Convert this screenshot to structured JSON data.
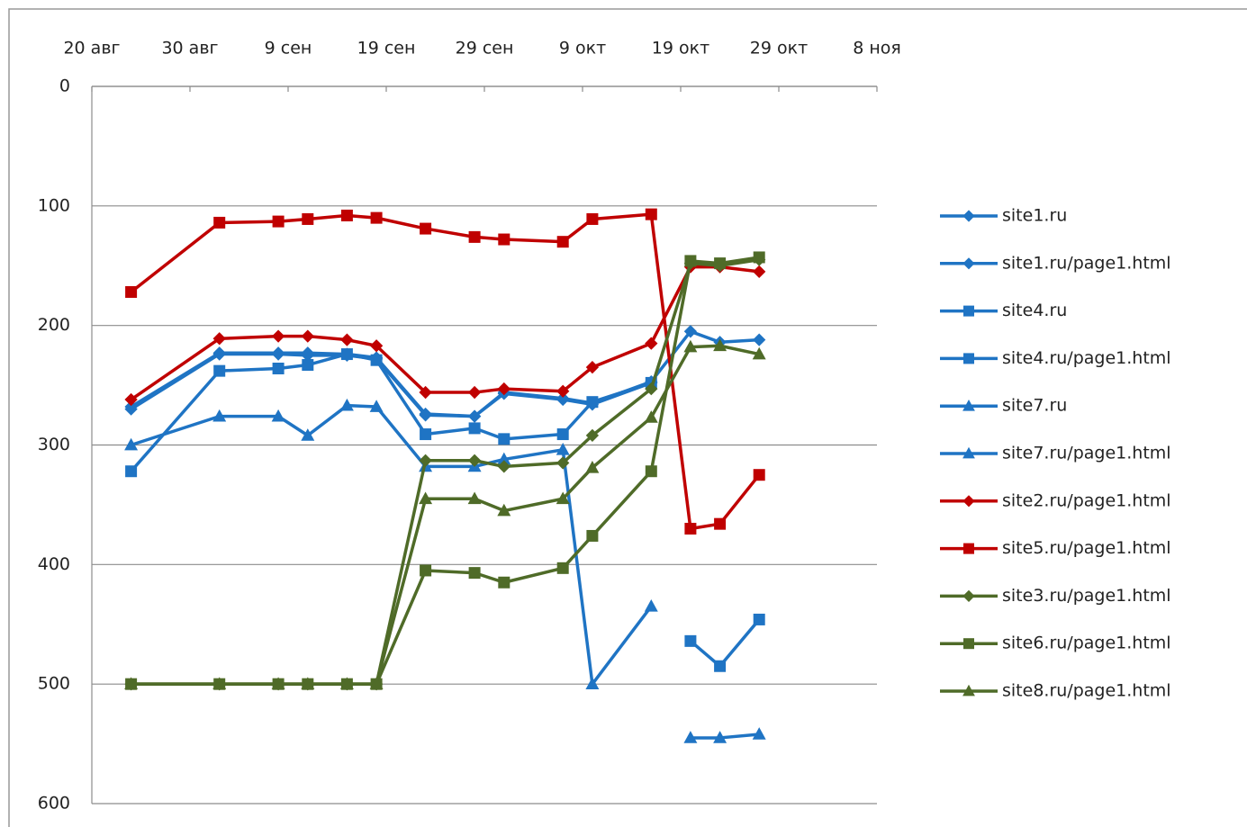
{
  "chart_data": {
    "type": "line",
    "x": [
      4,
      13,
      19,
      22,
      26,
      29,
      34,
      39,
      42,
      48,
      51,
      57,
      61,
      64,
      68
    ],
    "xlim": [
      0,
      80
    ],
    "xticks": [
      {
        "value": 0,
        "label": "20 авг"
      },
      {
        "value": 10,
        "label": "30 авг"
      },
      {
        "value": 20,
        "label": "9 сен"
      },
      {
        "value": 30,
        "label": "19 сен"
      },
      {
        "value": 40,
        "label": "29 сен"
      },
      {
        "value": 50,
        "label": "9 окт"
      },
      {
        "value": 60,
        "label": "19 окт"
      },
      {
        "value": 70,
        "label": "29 окт"
      },
      {
        "value": 80,
        "label": "8 ноя"
      }
    ],
    "ylim": [
      600,
      0
    ],
    "yticks": [
      0,
      100,
      200,
      300,
      400,
      500,
      600
    ],
    "grid": true,
    "legend": "right",
    "series": [
      {
        "name": "site1.ru",
        "color": "#1f74c4",
        "marker": "diamond",
        "values": [
          268,
          223,
          223,
          223,
          224,
          227,
          274,
          276,
          256,
          261,
          265,
          247,
          205,
          214,
          212
        ]
      },
      {
        "name": "site1.ru/page1.html",
        "color": "#1f74c4",
        "marker": "diamond",
        "values": [
          270,
          224,
          224,
          225,
          225,
          228,
          275,
          276,
          257,
          262,
          266,
          248,
          null,
          null,
          null
        ]
      },
      {
        "name": "site4.ru",
        "color": "#1f74c4",
        "marker": "square",
        "values": [
          322,
          238,
          236,
          233,
          224,
          229,
          291,
          286,
          295,
          291,
          264,
          248,
          null,
          null,
          null
        ]
      },
      {
        "name": "site4.ru/page1.html",
        "color": "#1f74c4",
        "marker": "square",
        "values": [
          null,
          null,
          null,
          null,
          null,
          null,
          null,
          null,
          null,
          null,
          null,
          null,
          464,
          485,
          446
        ]
      },
      {
        "name": "site7.ru",
        "color": "#1f74c4",
        "marker": "triangle",
        "values": [
          300,
          276,
          276,
          292,
          267,
          268,
          318,
          318,
          312,
          304,
          500,
          435,
          null,
          null,
          null
        ]
      },
      {
        "name": "site7.ru/page1.html",
        "color": "#1f74c4",
        "marker": "triangle",
        "values": [
          null,
          null,
          null,
          null,
          null,
          null,
          null,
          null,
          null,
          null,
          null,
          null,
          545,
          545,
          542
        ]
      },
      {
        "name": "site2.ru/page1.html",
        "color": "#c00000",
        "marker": "diamond",
        "values": [
          262,
          211,
          209,
          209,
          212,
          217,
          256,
          256,
          253,
          255,
          235,
          215,
          151,
          151,
          155
        ]
      },
      {
        "name": "site5.ru/page1.html",
        "color": "#c00000",
        "marker": "square",
        "values": [
          172,
          114,
          113,
          111,
          108,
          110,
          119,
          126,
          128,
          130,
          111,
          107,
          370,
          366,
          325
        ]
      },
      {
        "name": "site3.ru/page1.html",
        "color": "#4f6b28",
        "marker": "diamond",
        "values": [
          500,
          500,
          500,
          500,
          500,
          500,
          313,
          313,
          318,
          315,
          292,
          253,
          148,
          150,
          145
        ]
      },
      {
        "name": "site6.ru/page1.html",
        "color": "#4f6b28",
        "marker": "square",
        "values": [
          500,
          500,
          500,
          500,
          500,
          500,
          405,
          407,
          415,
          403,
          376,
          322,
          146,
          148,
          143
        ]
      },
      {
        "name": "site8.ru/page1.html",
        "color": "#4f6b28",
        "marker": "triangle",
        "values": [
          500,
          500,
          500,
          500,
          500,
          500,
          345,
          345,
          355,
          345,
          319,
          277,
          218,
          217,
          224
        ]
      }
    ]
  }
}
